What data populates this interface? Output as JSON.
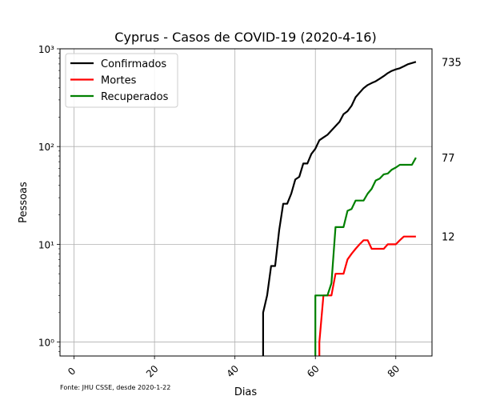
{
  "chart_data": {
    "type": "line",
    "title": "Cyprus - Casos de COVID-19 (2020-4-16)",
    "xlabel": "Dias",
    "ylabel": "Pessoas",
    "source_note": "Fonte: JHU CSSE, desde 2020-1-22",
    "x_range": [
      -3.5,
      89
    ],
    "x_ticks": [
      0,
      20,
      40,
      60,
      80
    ],
    "y_scale": "log",
    "y_range": [
      0.72,
      1000
    ],
    "y_ticks": [
      1,
      10,
      100,
      1000
    ],
    "y_tick_labels": [
      "10⁰",
      "10¹",
      "10²",
      "10³"
    ],
    "grid": true,
    "legend_position": "top-left",
    "series": [
      {
        "name": "Confirmados",
        "color": "#000000",
        "x": [
          47,
          47,
          48,
          49,
          50,
          51,
          52,
          53,
          54,
          55,
          56,
          57,
          58,
          59,
          60,
          61,
          62,
          63,
          64,
          65,
          66,
          67,
          68,
          69,
          70,
          71,
          72,
          73,
          74,
          75,
          76,
          77,
          78,
          79,
          80,
          81,
          82,
          83,
          84,
          85
        ],
        "y": [
          0.72,
          2,
          3,
          6,
          6,
          14,
          26,
          26,
          33,
          46,
          49,
          67,
          67,
          84,
          95,
          116,
          124,
          132,
          146,
          162,
          179,
          214,
          230,
          262,
          320,
          356,
          396,
          426,
          446,
          465,
          494,
          526,
          564,
          595,
          616,
          633,
          662,
          695,
          715,
          735
        ],
        "end_label": "735"
      },
      {
        "name": "Mortes",
        "color": "#ff0000",
        "x": [
          61,
          61,
          62,
          63,
          64,
          65,
          66,
          67,
          68,
          69,
          70,
          71,
          72,
          73,
          74,
          75,
          76,
          77,
          78,
          79,
          80,
          81,
          82,
          83,
          84,
          85
        ],
        "y": [
          0.72,
          1,
          3,
          3,
          3,
          5,
          5,
          5,
          7,
          8,
          9,
          10,
          11,
          11,
          9,
          9,
          9,
          9,
          10,
          10,
          10,
          11,
          12,
          12,
          12,
          12
        ],
        "end_label": "12"
      },
      {
        "name": "Recuperados",
        "color": "#008000",
        "x": [
          60,
          60,
          61,
          62,
          63,
          64,
          65,
          66,
          67,
          68,
          69,
          70,
          71,
          72,
          73,
          74,
          75,
          76,
          77,
          78,
          79,
          80,
          81,
          82,
          83,
          84,
          85
        ],
        "y": [
          0.72,
          3,
          3,
          3,
          3,
          4,
          15,
          15,
          15,
          22,
          23,
          28,
          28,
          28,
          33,
          37,
          45,
          47,
          52,
          53,
          58,
          61,
          65,
          65,
          65,
          65,
          77
        ],
        "end_label": "77"
      }
    ]
  }
}
